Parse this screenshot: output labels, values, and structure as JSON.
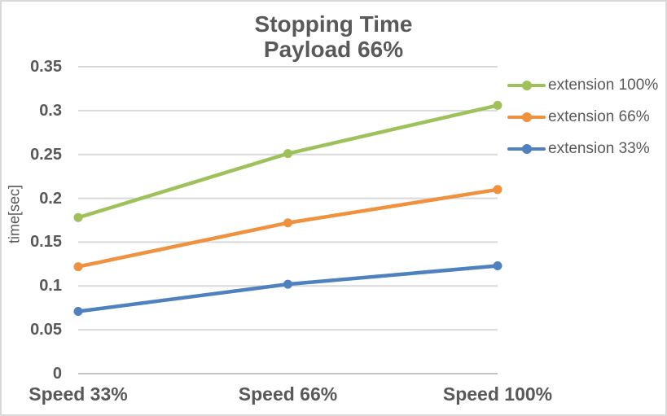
{
  "chart_data": {
    "type": "line",
    "title": "Stopping Time",
    "subtitle": "Payload 66%",
    "ylabel": "time[sec]",
    "xlabel": "",
    "categories": [
      "Speed 33%",
      "Speed 66%",
      "Speed 100%"
    ],
    "series": [
      {
        "name": "extension 100%",
        "color": "#9ec15a",
        "values": [
          0.178,
          0.251,
          0.306
        ]
      },
      {
        "name": "extension 66%",
        "color": "#f0913e",
        "values": [
          0.122,
          0.172,
          0.21
        ]
      },
      {
        "name": "extension 33%",
        "color": "#4e81bd",
        "values": [
          0.071,
          0.102,
          0.123
        ]
      }
    ],
    "ylim": [
      0,
      0.35
    ],
    "ytick_step": 0.05,
    "yticks": [
      {
        "value": 0.35,
        "label": "0.35"
      },
      {
        "value": 0.3,
        "label": "0.3"
      },
      {
        "value": 0.25,
        "label": "0.25"
      },
      {
        "value": 0.2,
        "label": "0.2"
      },
      {
        "value": 0.15,
        "label": "0.15"
      },
      {
        "value": 0.1,
        "label": "0.1"
      },
      {
        "value": 0.05,
        "label": "0.05"
      },
      {
        "value": 0,
        "label": "0"
      }
    ],
    "grid": "horizontal",
    "legend_position": "right"
  },
  "colors": {
    "text": "#595959",
    "gridline": "#d9d9d9",
    "zero_line": "#c6c6c6",
    "border": "#d9d9d9",
    "background": "#ffffff"
  }
}
